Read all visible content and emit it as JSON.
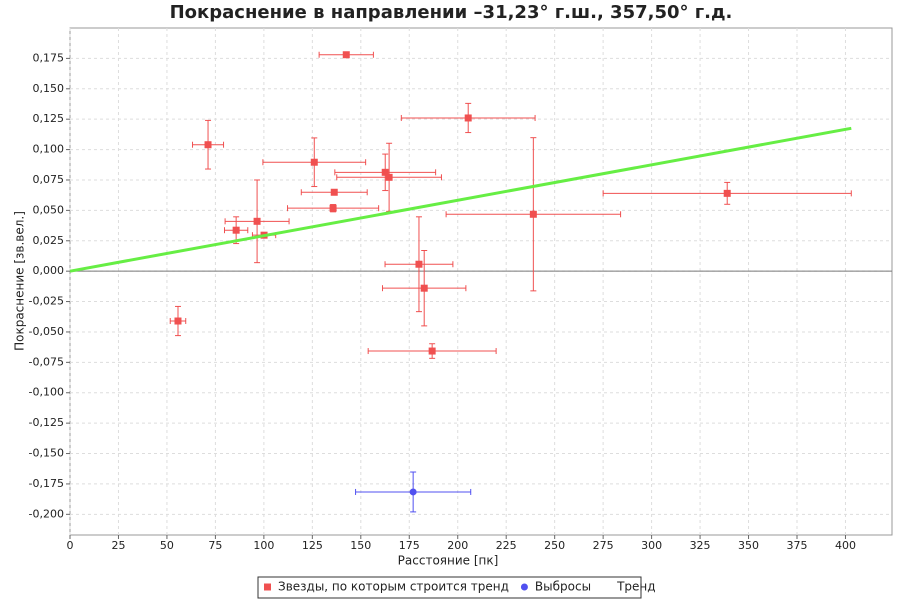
{
  "chart_data": {
    "type": "scatter",
    "title": "Покраснение в направлении –31,23° г.ш., 357,50° г.д.",
    "x_label": "Расстояние [пк]",
    "y_label": "Покраснение [зв.вел.]",
    "xlim": [
      0,
      424
    ],
    "ylim": [
      -0.217,
      0.2
    ],
    "xticks": [
      0,
      25,
      50,
      75,
      100,
      125,
      150,
      175,
      200,
      225,
      250,
      275,
      300,
      325,
      350,
      375,
      400
    ],
    "yticks": [
      {
        "value": -0.2,
        "label": "-0,200"
      },
      {
        "value": -0.175,
        "label": "-0,175"
      },
      {
        "value": -0.15,
        "label": "-0,150"
      },
      {
        "value": -0.125,
        "label": "-0,125"
      },
      {
        "value": -0.1,
        "label": "-0,100"
      },
      {
        "value": -0.075,
        "label": "-0,075"
      },
      {
        "value": -0.05,
        "label": "-0,050"
      },
      {
        "value": -0.025,
        "label": "-0,025"
      },
      {
        "value": 0,
        "label": "0,000"
      },
      {
        "value": 0.025,
        "label": "0,025"
      },
      {
        "value": 0.05,
        "label": "0,050"
      },
      {
        "value": 0.075,
        "label": "0,075"
      },
      {
        "value": 0.1,
        "label": "0,100"
      },
      {
        "value": 0.125,
        "label": "0,125"
      },
      {
        "value": 0.15,
        "label": "0,150"
      },
      {
        "value": 0.175,
        "label": "0,175"
      }
    ],
    "grid": true,
    "series": [
      {
        "name": "Звезды, по которым строится тренд",
        "type": "scatter",
        "color": "#f05050",
        "x": [
          142.5,
          71.2,
          205.4,
          126,
          162.6,
          164.6,
          136.3,
          135.7,
          239,
          339,
          96.5,
          85.7,
          100.1,
          180,
          182.7,
          55.7,
          186.8
        ],
        "values": [
          0.178,
          0.104,
          0.126,
          0.0896,
          0.0813,
          0.0772,
          0.0649,
          0.0518,
          0.0468,
          0.064,
          0.041,
          0.0337,
          0.0296,
          0.0057,
          -0.014,
          -0.041,
          -0.0657
        ],
        "xerr": [
          14,
          8,
          34.5,
          26.5,
          26,
          27,
          17,
          23.5,
          45,
          64,
          16.5,
          6,
          6,
          17.5,
          21.5,
          4,
          33
        ],
        "yerr": [
          0.001,
          0.02,
          0.012,
          0.02,
          0.015,
          0.028,
          0.002,
          0.003,
          0.063,
          0.009,
          0.034,
          0.011,
          0.002,
          0.039,
          0.031,
          0.012,
          0.006
        ]
      },
      {
        "name": "Выбросы",
        "type": "scatter",
        "color": "#5050f0",
        "x": [
          177
        ],
        "values": [
          -0.1816
        ],
        "xerr": [
          29.7
        ],
        "yerr": [
          0.0164
        ]
      },
      {
        "name": "Тренд",
        "type": "line",
        "color": "#66ee44",
        "x": [
          0,
          403
        ],
        "values": [
          0,
          0.1175
        ]
      }
    ]
  }
}
